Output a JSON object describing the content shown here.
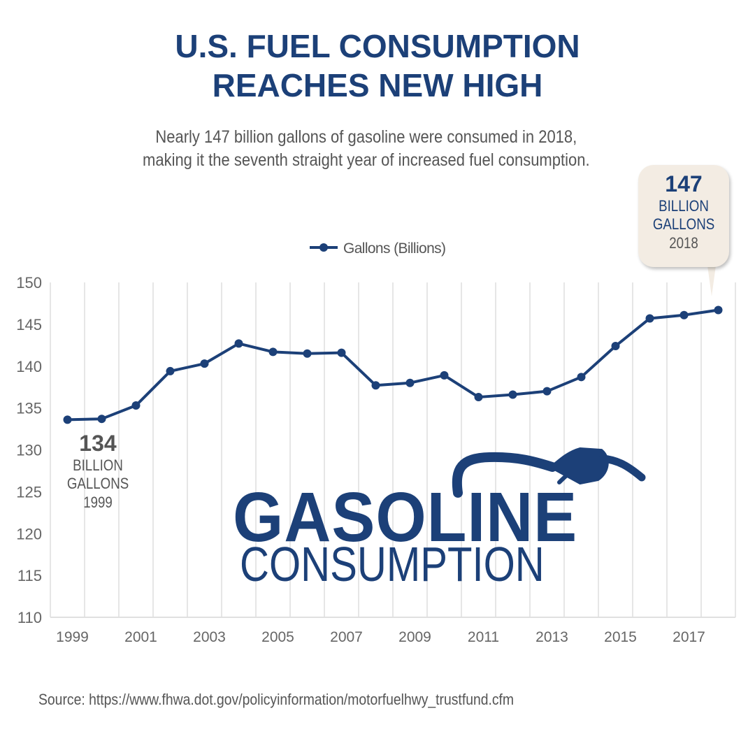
{
  "title_lines": [
    "U.S. FUEL CONSUMPTION",
    "REACHES NEW HIGH"
  ],
  "subtitle_lines": [
    "Nearly 147 billion gallons of gasoline were consumed in 2018,",
    "making it the seventh straight year of increased fuel consumption."
  ],
  "callout_end": {
    "value": "147",
    "line1": "BILLION",
    "line2": "GALLONS",
    "year": "2018",
    "background": "#f3ece3"
  },
  "callout_start": {
    "value": "134",
    "line1": "BILLION",
    "line2": "GALLONS",
    "year": "1999"
  },
  "logo": {
    "line1": "GASOLINE",
    "line2": "CONSUMPTION",
    "icon": "gas-pump-nozzle-icon"
  },
  "source": "Source: https://www.fhwa.dot.gov/policyinformation/motorfuelhwy_trustfund.cfm",
  "colors": {
    "accent": "#1c4078",
    "grid": "#e6e6e6",
    "text": "#555555"
  },
  "chart_data": {
    "type": "line",
    "x": [
      1999,
      2000,
      2001,
      2002,
      2003,
      2004,
      2005,
      2006,
      2007,
      2008,
      2009,
      2010,
      2011,
      2012,
      2013,
      2014,
      2015,
      2016,
      2017,
      2018
    ],
    "series": [
      {
        "name": "Gallons (Billions)",
        "values": [
          133.6,
          133.7,
          135.3,
          139.4,
          140.3,
          142.7,
          141.7,
          141.5,
          141.6,
          137.7,
          138.0,
          138.9,
          136.3,
          136.6,
          137.0,
          138.7,
          142.4,
          145.7,
          146.1,
          146.7
        ]
      }
    ],
    "ylim": [
      110,
      150
    ],
    "yticks": [
      "110",
      "115",
      "120",
      "125",
      "130",
      "135",
      "140",
      "145",
      "150"
    ],
    "xtick_labels": [
      "1999",
      "2001",
      "2003",
      "2005",
      "2007",
      "2009",
      "2011",
      "2013",
      "2015",
      "2017"
    ],
    "legend": "top-center",
    "grid": "vertical"
  }
}
